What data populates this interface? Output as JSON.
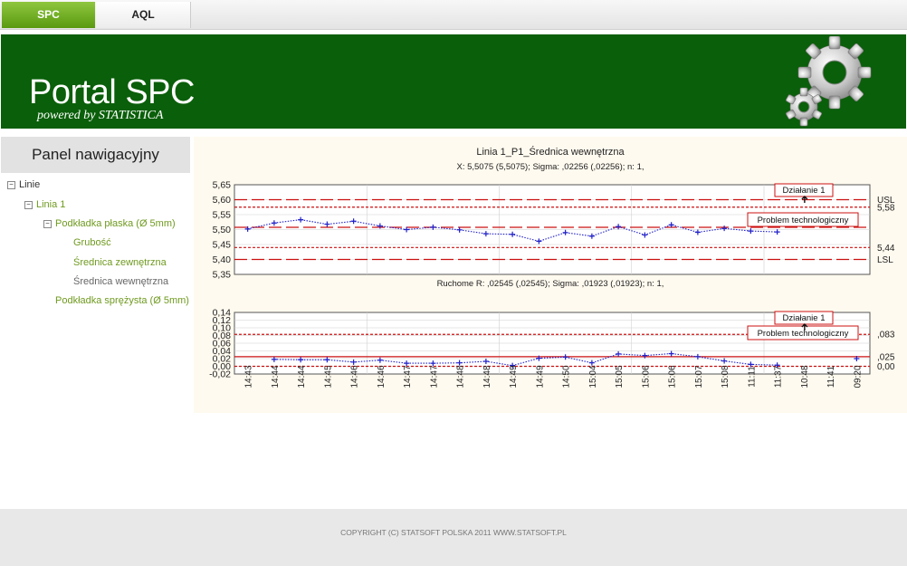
{
  "tabs": [
    {
      "label": "SPC"
    },
    {
      "label": "AQL"
    }
  ],
  "banner": {
    "title": "Portal SPC",
    "subtitle": "powered by STATISTICA"
  },
  "nav": {
    "heading": "Panel nawigacyjny",
    "items": [
      {
        "label": "Linie",
        "toggle": "−"
      },
      {
        "label": "Linia 1",
        "toggle": "−"
      },
      {
        "label": "Podkładka płaska (Ø 5mm)",
        "toggle": "−"
      },
      {
        "label": "Grubość"
      },
      {
        "label": "Średnica zewnętrzna"
      },
      {
        "label": "Średnica wewnętrzna"
      },
      {
        "label": "Podkładka sprężysta (Ø 5mm)"
      }
    ]
  },
  "chart_data": {
    "type": "line",
    "title": "Linia 1_P1_Średnica wewnętrzna",
    "colors": {
      "series": "#2020c8",
      "limit": "#cc1111",
      "grid": "#cfcfcf"
    },
    "x": [
      "14:43",
      "14:44",
      "14:44",
      "14:45",
      "14:46",
      "14:46",
      "14:47",
      "14:47",
      "14:48",
      "14:48",
      "14:49",
      "14:49",
      "14:50",
      "15:04",
      "15:05",
      "15:06",
      "15:06",
      "15:07",
      "15:08",
      "11:11",
      "11:37",
      "10:48",
      "11:41",
      "09:20"
    ],
    "charts": [
      {
        "subtitle": "X: 5,5075 (5,5075); Sigma: ,02256 (,02256); n: 1,",
        "ylim": [
          5.35,
          5.65
        ],
        "yticks": [
          "5,35",
          "5,40",
          "5,45",
          "5,50",
          "5,55",
          "5,60",
          "5,65"
        ],
        "values": [
          5.502,
          5.522,
          5.533,
          5.518,
          5.528,
          5.512,
          5.5,
          5.508,
          5.499,
          5.486,
          5.484,
          5.461,
          5.49,
          5.478,
          5.51,
          5.482,
          5.516,
          5.491,
          5.504,
          5.495,
          5.492,
          null,
          null,
          null
        ],
        "limits": [
          {
            "value": 5.6,
            "label": "USL",
            "style": "long-dash"
          },
          {
            "value": 5.575,
            "label": "5,58",
            "style": "short-dash"
          },
          {
            "value": 5.5075,
            "label": "",
            "style": "long-dash"
          },
          {
            "value": 5.44,
            "label": "5,44",
            "style": "short-dash"
          },
          {
            "value": 5.4,
            "label": "LSL",
            "style": "long-dash"
          }
        ],
        "annotations": [
          {
            "label": "Działanie 1"
          },
          {
            "label": "Problem technologiczny"
          }
        ]
      },
      {
        "subtitle": "Ruchome R: ,02545 (,02545); Sigma: ,01923 (,01923); n: 1,",
        "ylim": [
          -0.02,
          0.14
        ],
        "yticks": [
          "-0,02",
          "0,00",
          "0,02",
          "0,04",
          "0,06",
          "0,08",
          "0,10",
          "0,12",
          "0,14"
        ],
        "values": [
          null,
          0.018,
          0.017,
          0.017,
          0.011,
          0.016,
          0.008,
          0.008,
          0.009,
          0.013,
          0.002,
          0.021,
          0.024,
          0.009,
          0.032,
          0.028,
          0.033,
          0.025,
          0.014,
          0.005,
          0.003,
          null,
          null,
          0.02
        ],
        "limits": [
          {
            "value": 0.083,
            "label": ",083",
            "style": "short-dash"
          },
          {
            "value": 0.025,
            "label": ",025",
            "style": "solid"
          },
          {
            "value": 0.0,
            "label": "0,00",
            "style": "short-dash"
          }
        ],
        "annotations": [
          {
            "label": "Działanie 1"
          },
          {
            "label": "Problem technologiczny"
          }
        ]
      }
    ]
  },
  "footer": {
    "copyright": "COPYRIGHT (C) STATSOFT POLSKA 2011 WWW.STATSOFT.PL"
  }
}
